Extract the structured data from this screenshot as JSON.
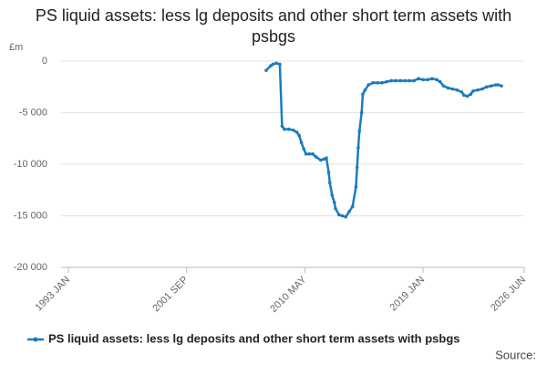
{
  "chart_data": {
    "type": "line",
    "title": "PS liquid assets: less lg deposits and other short term assets with psbgs",
    "y_label": "£m",
    "source": "Source:",
    "x": [
      "2007 JUL",
      "2007 NOV",
      "2008 JAN",
      "2008 APR",
      "2008 JUL",
      "2008 SEP",
      "2008 NOV",
      "2009 MAR",
      "2009 JUL",
      "2009 OCT",
      "2009 DEC",
      "2010 FEB",
      "2010 APR",
      "2010 JUN",
      "2010 SEP",
      "2010 DEC",
      "2011 MAR",
      "2011 JUL",
      "2011 OCT",
      "2011 DEC",
      "2012 FEB",
      "2012 MAR",
      "2012 MAY",
      "2012 JUL",
      "2012 AUG",
      "2012 NOV",
      "2013 FEB",
      "2013 MAY",
      "2013 AUG",
      "2013 NOV",
      "2014 FEB",
      "2014 MAR",
      "2014 APR",
      "2014 MAY",
      "2014 JUL",
      "2014 AUG",
      "2014 OCT",
      "2015 JAN",
      "2015 MAY",
      "2015 SEP",
      "2016 JAN",
      "2016 MAY",
      "2016 SEP",
      "2017 JAN",
      "2017 MAY",
      "2017 SEP",
      "2018 JAN",
      "2018 MAY",
      "2018 SEP",
      "2019 JAN",
      "2019 MAY",
      "2019 SEP",
      "2020 JAN",
      "2020 APR",
      "2020 JUL",
      "2020 NOV",
      "2021 MAR",
      "2021 JUL",
      "2021 NOV",
      "2022 JAN",
      "2022 APR",
      "2022 JUL",
      "2022 SEP",
      "2023 JAN",
      "2023 MAY",
      "2023 SEP",
      "2024 JAN",
      "2024 MAY",
      "2024 JUL",
      "2024 OCT"
    ],
    "series": [
      {
        "name": "PS liquid assets: less lg deposits and other short term assets with psbgs",
        "color": "#1a7cbf",
        "values": [
          -900,
          -450,
          -300,
          -200,
          -300,
          -6300,
          -6600,
          -6600,
          -6700,
          -6900,
          -7200,
          -7900,
          -8500,
          -9000,
          -9000,
          -9000,
          -9300,
          -9600,
          -9500,
          -9400,
          -10800,
          -11800,
          -13000,
          -13700,
          -14300,
          -14900,
          -15000,
          -15100,
          -14600,
          -14100,
          -12200,
          -10300,
          -8400,
          -6800,
          -5000,
          -3200,
          -2800,
          -2300,
          -2100,
          -2100,
          -2100,
          -2000,
          -1900,
          -1900,
          -1900,
          -1900,
          -1900,
          -1900,
          -1700,
          -1800,
          -1800,
          -1700,
          -1800,
          -2000,
          -2400,
          -2600,
          -2700,
          -2800,
          -3000,
          -3300,
          -3400,
          -3200,
          -2900,
          -2800,
          -2700,
          -2500,
          -2400,
          -2300,
          -2300,
          -2400
        ]
      }
    ],
    "xlim": [
      "1993 JAN",
      "2026 JUN"
    ],
    "xticks": [
      "1993 JAN",
      "2001 SEP",
      "2010 MAY",
      "2019 JAN",
      "2026 JUN"
    ],
    "ylim": [
      -20000,
      0
    ],
    "yticks": [
      0,
      {
        "value": -5000,
        "label": "-5 000"
      },
      {
        "value": -10000,
        "label": "-10 000"
      },
      {
        "value": -15000,
        "label": "-15 000"
      },
      {
        "value": -20000,
        "label": "-20 000"
      }
    ],
    "grid": true,
    "legend": "bottom"
  }
}
